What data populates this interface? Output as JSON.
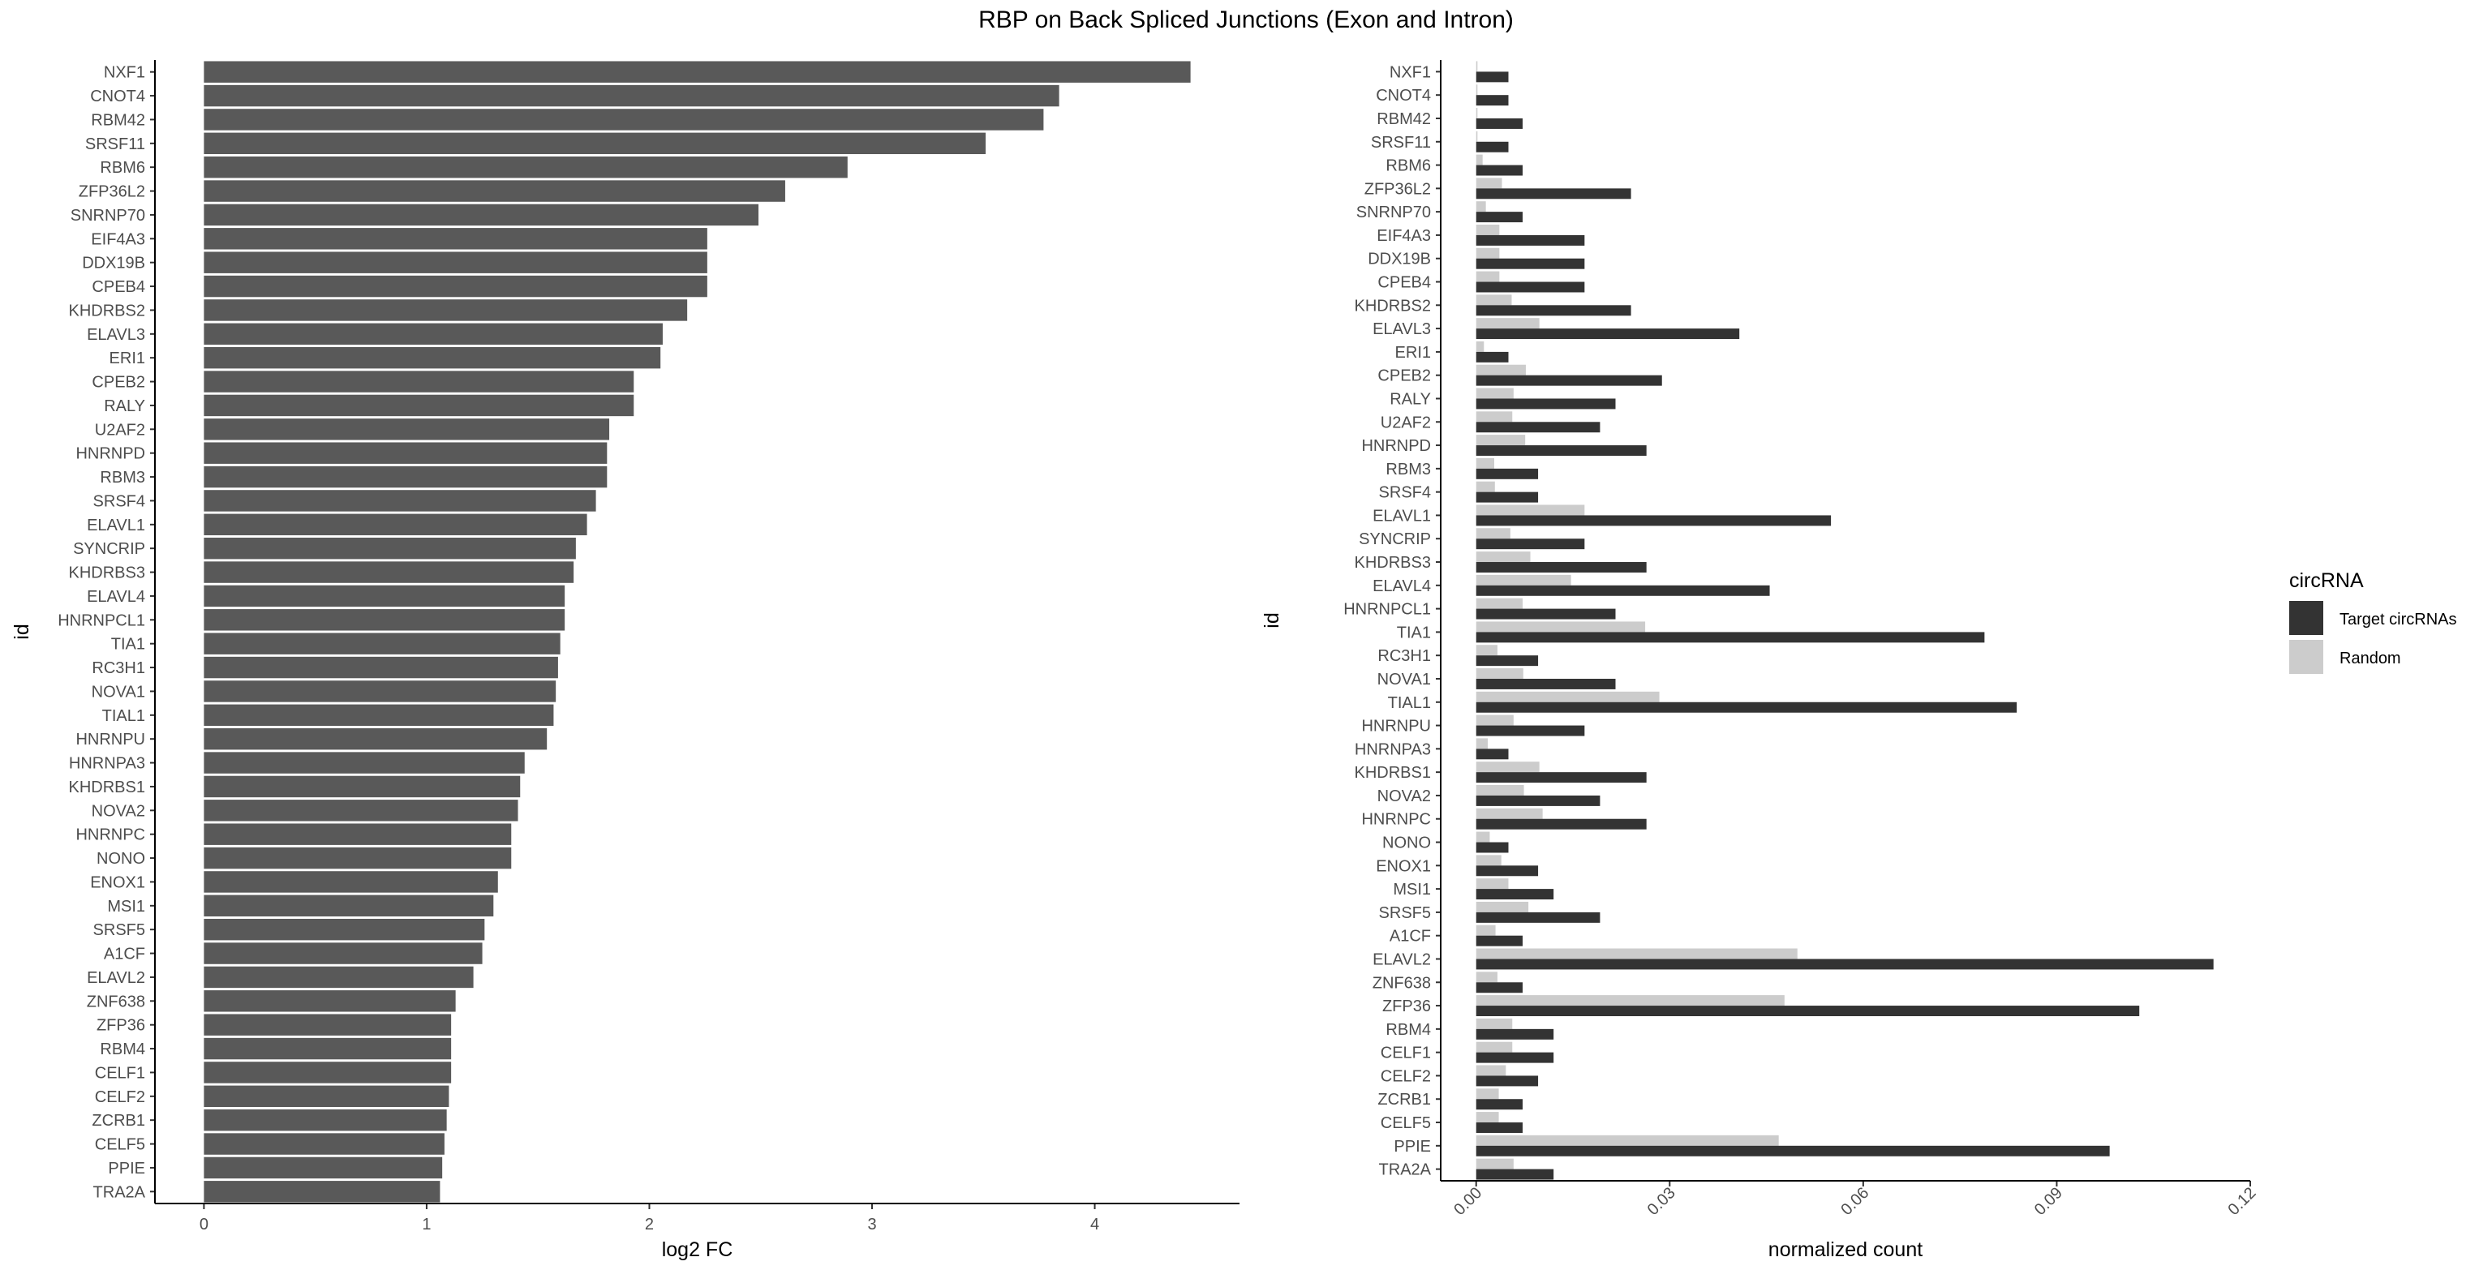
{
  "title": "RBP on Back Spliced Junctions (Exon and Intron)",
  "colors": {
    "fc_bar": "#595959",
    "target": "#333333",
    "random": "#cccccc",
    "axis": "#000000"
  },
  "chart_data": [
    {
      "type": "bar",
      "orientation": "horizontal",
      "xlabel": "log2 FC",
      "ylabel": "id",
      "xlim": [
        -0.22,
        4.65
      ],
      "xticks": [
        "0",
        "1",
        "2",
        "3",
        "4"
      ],
      "xtick_values": [
        0,
        1,
        2,
        3,
        4
      ],
      "grid": false,
      "categories": [
        "NXF1",
        "CNOT4",
        "RBM42",
        "SRSF11",
        "RBM6",
        "ZFP36L2",
        "SNRNP70",
        "EIF4A3",
        "DDX19B",
        "CPEB4",
        "KHDRBS2",
        "ELAVL3",
        "ERI1",
        "CPEB2",
        "RALY",
        "U2AF2",
        "HNRNPD",
        "RBM3",
        "SRSF4",
        "ELAVL1",
        "SYNCRIP",
        "KHDRBS3",
        "ELAVL4",
        "HNRNPCL1",
        "TIA1",
        "RC3H1",
        "NOVA1",
        "TIAL1",
        "HNRNPU",
        "HNRNPA3",
        "KHDRBS1",
        "NOVA2",
        "HNRNPC",
        "NONO",
        "ENOX1",
        "MSI1",
        "SRSF5",
        "A1CF",
        "ELAVL2",
        "ZNF638",
        "ZFP36",
        "RBM4",
        "CELF1",
        "CELF2",
        "ZCRB1",
        "CELF5",
        "PPIE",
        "TRA2A"
      ],
      "values": [
        4.43,
        3.84,
        3.77,
        3.51,
        2.89,
        2.61,
        2.49,
        2.26,
        2.26,
        2.26,
        2.17,
        2.06,
        2.05,
        1.93,
        1.93,
        1.82,
        1.81,
        1.81,
        1.76,
        1.72,
        1.67,
        1.66,
        1.62,
        1.62,
        1.6,
        1.59,
        1.58,
        1.57,
        1.54,
        1.44,
        1.42,
        1.41,
        1.38,
        1.38,
        1.32,
        1.3,
        1.26,
        1.25,
        1.21,
        1.13,
        1.11,
        1.11,
        1.11,
        1.1,
        1.09,
        1.08,
        1.07,
        1.06
      ]
    },
    {
      "type": "bar",
      "orientation": "horizontal",
      "xlabel": "normalized count",
      "ylabel": "id",
      "xlim": [
        -0.0055,
        0.12
      ],
      "xticks": [
        "0.00",
        "0.03",
        "0.06",
        "0.09",
        "0.12"
      ],
      "xtick_values": [
        0,
        0.03,
        0.06,
        0.09,
        0.12
      ],
      "grid": false,
      "legend": {
        "title": "circRNA",
        "position": "right"
      },
      "categories": [
        "NXF1",
        "CNOT4",
        "RBM42",
        "SRSF11",
        "RBM6",
        "ZFP36L2",
        "SNRNP70",
        "EIF4A3",
        "DDX19B",
        "CPEB4",
        "KHDRBS2",
        "ELAVL3",
        "ERI1",
        "CPEB2",
        "RALY",
        "U2AF2",
        "HNRNPD",
        "RBM3",
        "SRSF4",
        "ELAVL1",
        "SYNCRIP",
        "KHDRBS3",
        "ELAVL4",
        "HNRNPCL1",
        "TIA1",
        "RC3H1",
        "NOVA1",
        "TIAL1",
        "HNRNPU",
        "HNRNPA3",
        "KHDRBS1",
        "NOVA2",
        "HNRNPC",
        "NONO",
        "ENOX1",
        "MSI1",
        "SRSF5",
        "A1CF",
        "ELAVL2",
        "ZNF638",
        "ZFP36",
        "RBM4",
        "CELF1",
        "CELF2",
        "ZCRB1",
        "CELF5",
        "PPIE",
        "TRA2A"
      ],
      "series": [
        {
          "name": "Target circRNAs",
          "values": [
            0.005,
            0.005,
            0.0072,
            0.005,
            0.0072,
            0.024,
            0.0072,
            0.0168,
            0.0168,
            0.0168,
            0.024,
            0.0408,
            0.005,
            0.0288,
            0.0216,
            0.0192,
            0.0264,
            0.0096,
            0.0096,
            0.055,
            0.0168,
            0.0264,
            0.0455,
            0.0216,
            0.0788,
            0.0096,
            0.0216,
            0.0838,
            0.0168,
            0.005,
            0.0264,
            0.0192,
            0.0264,
            0.005,
            0.0096,
            0.012,
            0.0192,
            0.0072,
            0.1143,
            0.0072,
            0.1028,
            0.012,
            0.012,
            0.0096,
            0.0072,
            0.0072,
            0.0982,
            0.012
          ]
        },
        {
          "name": "Random",
          "values": [
            0.0002,
            0.0002,
            0.0002,
            0.0002,
            0.001,
            0.004,
            0.0015,
            0.0036,
            0.0036,
            0.0036,
            0.0055,
            0.0098,
            0.0012,
            0.0077,
            0.0058,
            0.0056,
            0.0076,
            0.0028,
            0.0029,
            0.0168,
            0.0053,
            0.0084,
            0.0147,
            0.0072,
            0.0262,
            0.0033,
            0.0073,
            0.0284,
            0.0058,
            0.0018,
            0.0098,
            0.0074,
            0.0103,
            0.0021,
            0.0039,
            0.005,
            0.0081,
            0.003,
            0.0498,
            0.0033,
            0.0478,
            0.0056,
            0.0056,
            0.0046,
            0.0035,
            0.0035,
            0.0469,
            0.0058
          ]
        }
      ]
    }
  ]
}
